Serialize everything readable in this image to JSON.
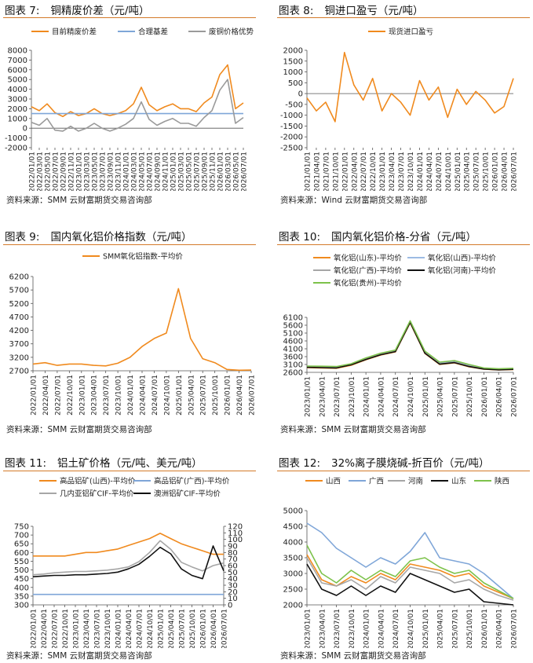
{
  "panels": [
    {
      "num": "图表 7:",
      "title": "铜精废价差（元/吨）",
      "source": "资料来源：SMM 云财富期货交易咨询部"
    },
    {
      "num": "图表 8:",
      "title": "铜进口盈亏（元/吨）",
      "source": "资料来源：Wind 云财富期货交易咨询部"
    },
    {
      "num": "图表 9:",
      "title": "国内氧化铝价格指数（元/吨）",
      "source": "资料来源：SMM 云财富期货交易咨询部"
    },
    {
      "num": "图表 10:",
      "title": "国内氧化铝价格-分省（元/吨）",
      "source": "资料来源：SMM 云财富期货交易咨询部"
    },
    {
      "num": "图表 11:",
      "title": "铝土矿价格（元/吨、美元/吨）",
      "source": "资料来源：SMM 云财富期货交易咨询部"
    },
    {
      "num": "图表 12:",
      "title": "32%离子膜烧碱-折百价（元/吨）",
      "source": "资料来源：SMM 云财富期货交易咨询部"
    }
  ],
  "chart_data": [
    {
      "type": "line",
      "title": "铜精废价差（元/吨）",
      "ylim": [
        -2000,
        8000
      ],
      "yticks": [
        -2000,
        -1000,
        0,
        1000,
        2000,
        3000,
        4000,
        5000,
        6000,
        7000,
        8000
      ],
      "x": [
        "2022/01/01",
        "2022/03/01",
        "2022/05/01",
        "2022/07/01",
        "2022/09/01",
        "2022/11/01",
        "2023/01/01",
        "2023/03/01",
        "2023/05/01",
        "2023/07/01",
        "2023/09/01",
        "2023/11/01",
        "2024/01/01",
        "2024/03/01",
        "2024/05/01",
        "2024/07/01",
        "2024/09/01",
        "2024/11/01",
        "2025/01/01",
        "2025/03/01",
        "2025/05/01",
        "2025/07/01",
        "2025/09/01",
        "2025/11/01",
        "2026/01/01",
        "2026/03/01",
        "2026/05/01",
        "2026/07/01"
      ],
      "series": [
        {
          "name": "目前精废价差",
          "color": "#f08a1e",
          "values": [
            2200,
            1800,
            2500,
            1600,
            1200,
            1700,
            1300,
            1500,
            2000,
            1500,
            1300,
            1500,
            1800,
            2500,
            4200,
            2400,
            1800,
            2200,
            2500,
            2000,
            2000,
            1700,
            2600,
            3200,
            5500,
            6500,
            2000,
            2600
          ]
        },
        {
          "name": "合理基差",
          "color": "#7fa6d8",
          "values": [
            1500,
            1500,
            1500,
            1500,
            1500,
            1500,
            1500,
            1500,
            1500,
            1500,
            1500,
            1500,
            1500,
            1500,
            1500,
            1500,
            1500,
            1500,
            1500,
            1500,
            1500,
            1500,
            1500,
            1500,
            1500,
            1500,
            1500,
            1500
          ]
        },
        {
          "name": "废铜价格优势",
          "color": "#9a9a9a",
          "values": [
            600,
            300,
            1000,
            -200,
            -300,
            200,
            -300,
            0,
            500,
            0,
            -300,
            0,
            400,
            1000,
            2700,
            900,
            300,
            700,
            1000,
            500,
            500,
            200,
            1100,
            1800,
            3900,
            5000,
            500,
            1100
          ]
        }
      ]
    },
    {
      "type": "line",
      "title": "铜进口盈亏（元/吨）",
      "ylim": [
        -2500,
        2000
      ],
      "yticks": [
        -2500,
        -2000,
        -1500,
        -1000,
        -500,
        0,
        500,
        1000,
        1500,
        2000
      ],
      "x": [
        "2021/01/01",
        "2021/04/01",
        "2021/07/01",
        "2021/10/01",
        "2022/01/01",
        "2022/04/01",
        "2022/07/01",
        "2022/10/01",
        "2023/01/01",
        "2023/04/01",
        "2023/07/01",
        "2023/10/01",
        "2024/01/01",
        "2024/04/01",
        "2024/07/01",
        "2024/10/01",
        "2025/01/01",
        "2025/04/01",
        "2025/07/01",
        "2025/10/01",
        "2026/01/01",
        "2026/04/01",
        "2026/07/01"
      ],
      "series": [
        {
          "name": "现货进口盈亏",
          "color": "#f08a1e",
          "values": [
            -200,
            -800,
            -400,
            -1300,
            1900,
            400,
            -300,
            700,
            -800,
            0,
            -400,
            -1000,
            600,
            -300,
            300,
            -1100,
            200,
            -500,
            100,
            -300,
            -900,
            -600,
            700
          ]
        }
      ]
    },
    {
      "type": "line",
      "title": "国内氧化铝价格指数（元/吨）",
      "ylim": [
        2700,
        6200
      ],
      "yticks": [
        2700,
        3200,
        3700,
        4200,
        4700,
        5200,
        5700,
        6200
      ],
      "x": [
        "2022/01/01",
        "2022/04/01",
        "2022/07/01",
        "2022/10/01",
        "2023/01/01",
        "2023/04/01",
        "2023/07/01",
        "2023/10/01",
        "2024/01/01",
        "2024/04/01",
        "2024/07/01",
        "2024/10/01",
        "2025/01/01",
        "2025/04/01",
        "2025/07/01",
        "2025/10/01",
        "2026/01/01",
        "2026/04/01",
        "2026/07/01"
      ],
      "series": [
        {
          "name": "SMM氧化铝指数-平均价",
          "color": "#f08a1e",
          "values": [
            2950,
            3000,
            2900,
            2950,
            2950,
            2900,
            2880,
            2980,
            3200,
            3600,
            3900,
            4100,
            5750,
            3900,
            3150,
            3000,
            2750,
            2720,
            2730
          ]
        }
      ]
    },
    {
      "type": "line",
      "title": "国内氧化铝价格-分省（元/吨）",
      "ylim": [
        2600,
        6100
      ],
      "yticks": [
        2600,
        3100,
        3600,
        4100,
        4600,
        5100,
        5600,
        6100
      ],
      "x": [
        "2023/01/01",
        "2023/04/01",
        "2023/07/01",
        "2023/10/01",
        "2024/01/01",
        "2024/04/01",
        "2024/07/01",
        "2024/10/01",
        "2025/01/01",
        "2025/04/01",
        "2025/07/01",
        "2025/10/01",
        "2026/01/01",
        "2026/04/01",
        "2026/07/01"
      ],
      "series": [
        {
          "name": "氧化铝(山东)-平均价",
          "color": "#f08a1e",
          "values": [
            2900,
            2880,
            2860,
            3050,
            3400,
            3700,
            3900,
            5750,
            3800,
            3100,
            3200,
            2950,
            2800,
            2750,
            2780
          ]
        },
        {
          "name": "氧化铝(山西)-平均价",
          "color": "#9dbbe3",
          "values": [
            2980,
            2960,
            2950,
            3120,
            3500,
            3800,
            4000,
            5850,
            3900,
            3200,
            3300,
            3050,
            2850,
            2800,
            2830
          ]
        },
        {
          "name": "氧化铝(广西)-平均价",
          "color": "#a6a6a6",
          "values": [
            2950,
            2930,
            2900,
            3100,
            3450,
            3750,
            3950,
            5800,
            3850,
            3150,
            3250,
            3000,
            2830,
            2780,
            2800
          ]
        },
        {
          "name": "氧化铝(河南)-平均价",
          "color": "#111111",
          "values": [
            2920,
            2900,
            2880,
            3080,
            3420,
            3720,
            3920,
            5780,
            3820,
            3120,
            3220,
            2970,
            2810,
            2760,
            2790
          ]
        },
        {
          "name": "氧化铝(贵州)-平均价",
          "color": "#7dc24b",
          "values": [
            3000,
            2990,
            2970,
            3150,
            3520,
            3820,
            4020,
            5880,
            3950,
            3250,
            3350,
            3100,
            2880,
            2830,
            2860
          ]
        }
      ]
    },
    {
      "type": "line",
      "title": "铝土矿价格（元/吨、美元/吨）",
      "ylim": [
        300,
        750
      ],
      "yticks": [
        300,
        350,
        400,
        450,
        500,
        550,
        600,
        650,
        700,
        750
      ],
      "y2lim": [
        0,
        120
      ],
      "y2ticks": [
        0,
        10,
        20,
        30,
        40,
        50,
        60,
        70,
        80,
        90,
        100,
        110,
        120
      ],
      "x": [
        "2022/01/01",
        "2022/04/01",
        "2022/07/01",
        "2022/10/01",
        "2023/01/01",
        "2023/04/01",
        "2023/07/01",
        "2023/10/01",
        "2024/01/01",
        "2024/04/01",
        "2024/07/01",
        "2024/10/01",
        "2025/01/01",
        "2025/04/01",
        "2025/07/01",
        "2025/10/01",
        "2026/01/01",
        "2026/04/01",
        "2026/07/01"
      ],
      "series": [
        {
          "name": "高品铝矿(山西)-平均价",
          "color": "#f08a1e",
          "axis": "left",
          "values": [
            580,
            580,
            580,
            580,
            590,
            600,
            600,
            610,
            620,
            640,
            660,
            680,
            710,
            680,
            650,
            630,
            610,
            590,
            590
          ]
        },
        {
          "name": "高品铝矿(广西)-平均价",
          "color": "#7fa6d8",
          "axis": "left",
          "values": [
            360,
            360,
            360,
            360,
            360,
            360,
            360,
            360,
            360,
            360,
            360,
            360,
            360,
            360,
            360,
            360,
            360,
            360,
            360
          ]
        },
        {
          "name": "几内亚铝矿CIF-平均价",
          "color": "#a6a6a6",
          "axis": "right",
          "values": [
            46,
            47,
            49,
            50,
            51,
            51,
            52,
            53,
            55,
            58,
            66,
            80,
            98,
            85,
            65,
            58,
            52,
            60,
            64
          ]
        },
        {
          "name": "澳洲铝矿CIF-平均价",
          "color": "#111111",
          "axis": "right",
          "values": [
            43,
            44,
            45,
            45,
            46,
            46,
            47,
            48,
            50,
            55,
            62,
            74,
            88,
            78,
            55,
            45,
            40,
            90,
            52
          ]
        }
      ]
    },
    {
      "type": "line",
      "title": "32%离子膜烧碱-折百价（元/吨）",
      "ylim": [
        2000,
        5000
      ],
      "yticks": [
        2000,
        2500,
        3000,
        3500,
        4000,
        4500,
        5000
      ],
      "x": [
        "2023/01/01",
        "2023/04/01",
        "2023/07/01",
        "2023/10/01",
        "2024/01/01",
        "2024/04/01",
        "2024/07/01",
        "2024/10/01",
        "2025/01/01",
        "2025/04/01",
        "2025/07/01",
        "2025/10/01",
        "2026/01/01",
        "2026/04/01",
        "2026/07/01"
      ],
      "series": [
        {
          "name": "山西",
          "color": "#f08a1e",
          "values": [
            3600,
            2800,
            2600,
            2900,
            2700,
            3000,
            2800,
            3300,
            3200,
            3100,
            2900,
            3000,
            2600,
            2400,
            2200
          ]
        },
        {
          "name": "广西",
          "color": "#7fa6d8",
          "values": [
            4600,
            4300,
            3800,
            3500,
            3200,
            3500,
            3300,
            3700,
            4300,
            3500,
            3400,
            3300,
            3000,
            2600,
            2200
          ]
        },
        {
          "name": "河南",
          "color": "#a6a6a6",
          "values": [
            3500,
            2700,
            2600,
            2800,
            2500,
            2900,
            2700,
            3200,
            3100,
            3000,
            2700,
            2800,
            2500,
            2300,
            2150
          ]
        },
        {
          "name": "山东",
          "color": "#111111",
          "values": [
            3300,
            2500,
            2300,
            2600,
            2300,
            2600,
            2400,
            3000,
            2800,
            2600,
            2400,
            2500,
            2100,
            2050,
            2000
          ]
        },
        {
          "name": "陕西",
          "color": "#7dc24b",
          "values": [
            3900,
            3000,
            2700,
            3100,
            2800,
            3100,
            2900,
            3400,
            3500,
            3200,
            3000,
            3100,
            2700,
            2450,
            2200
          ]
        }
      ]
    }
  ]
}
